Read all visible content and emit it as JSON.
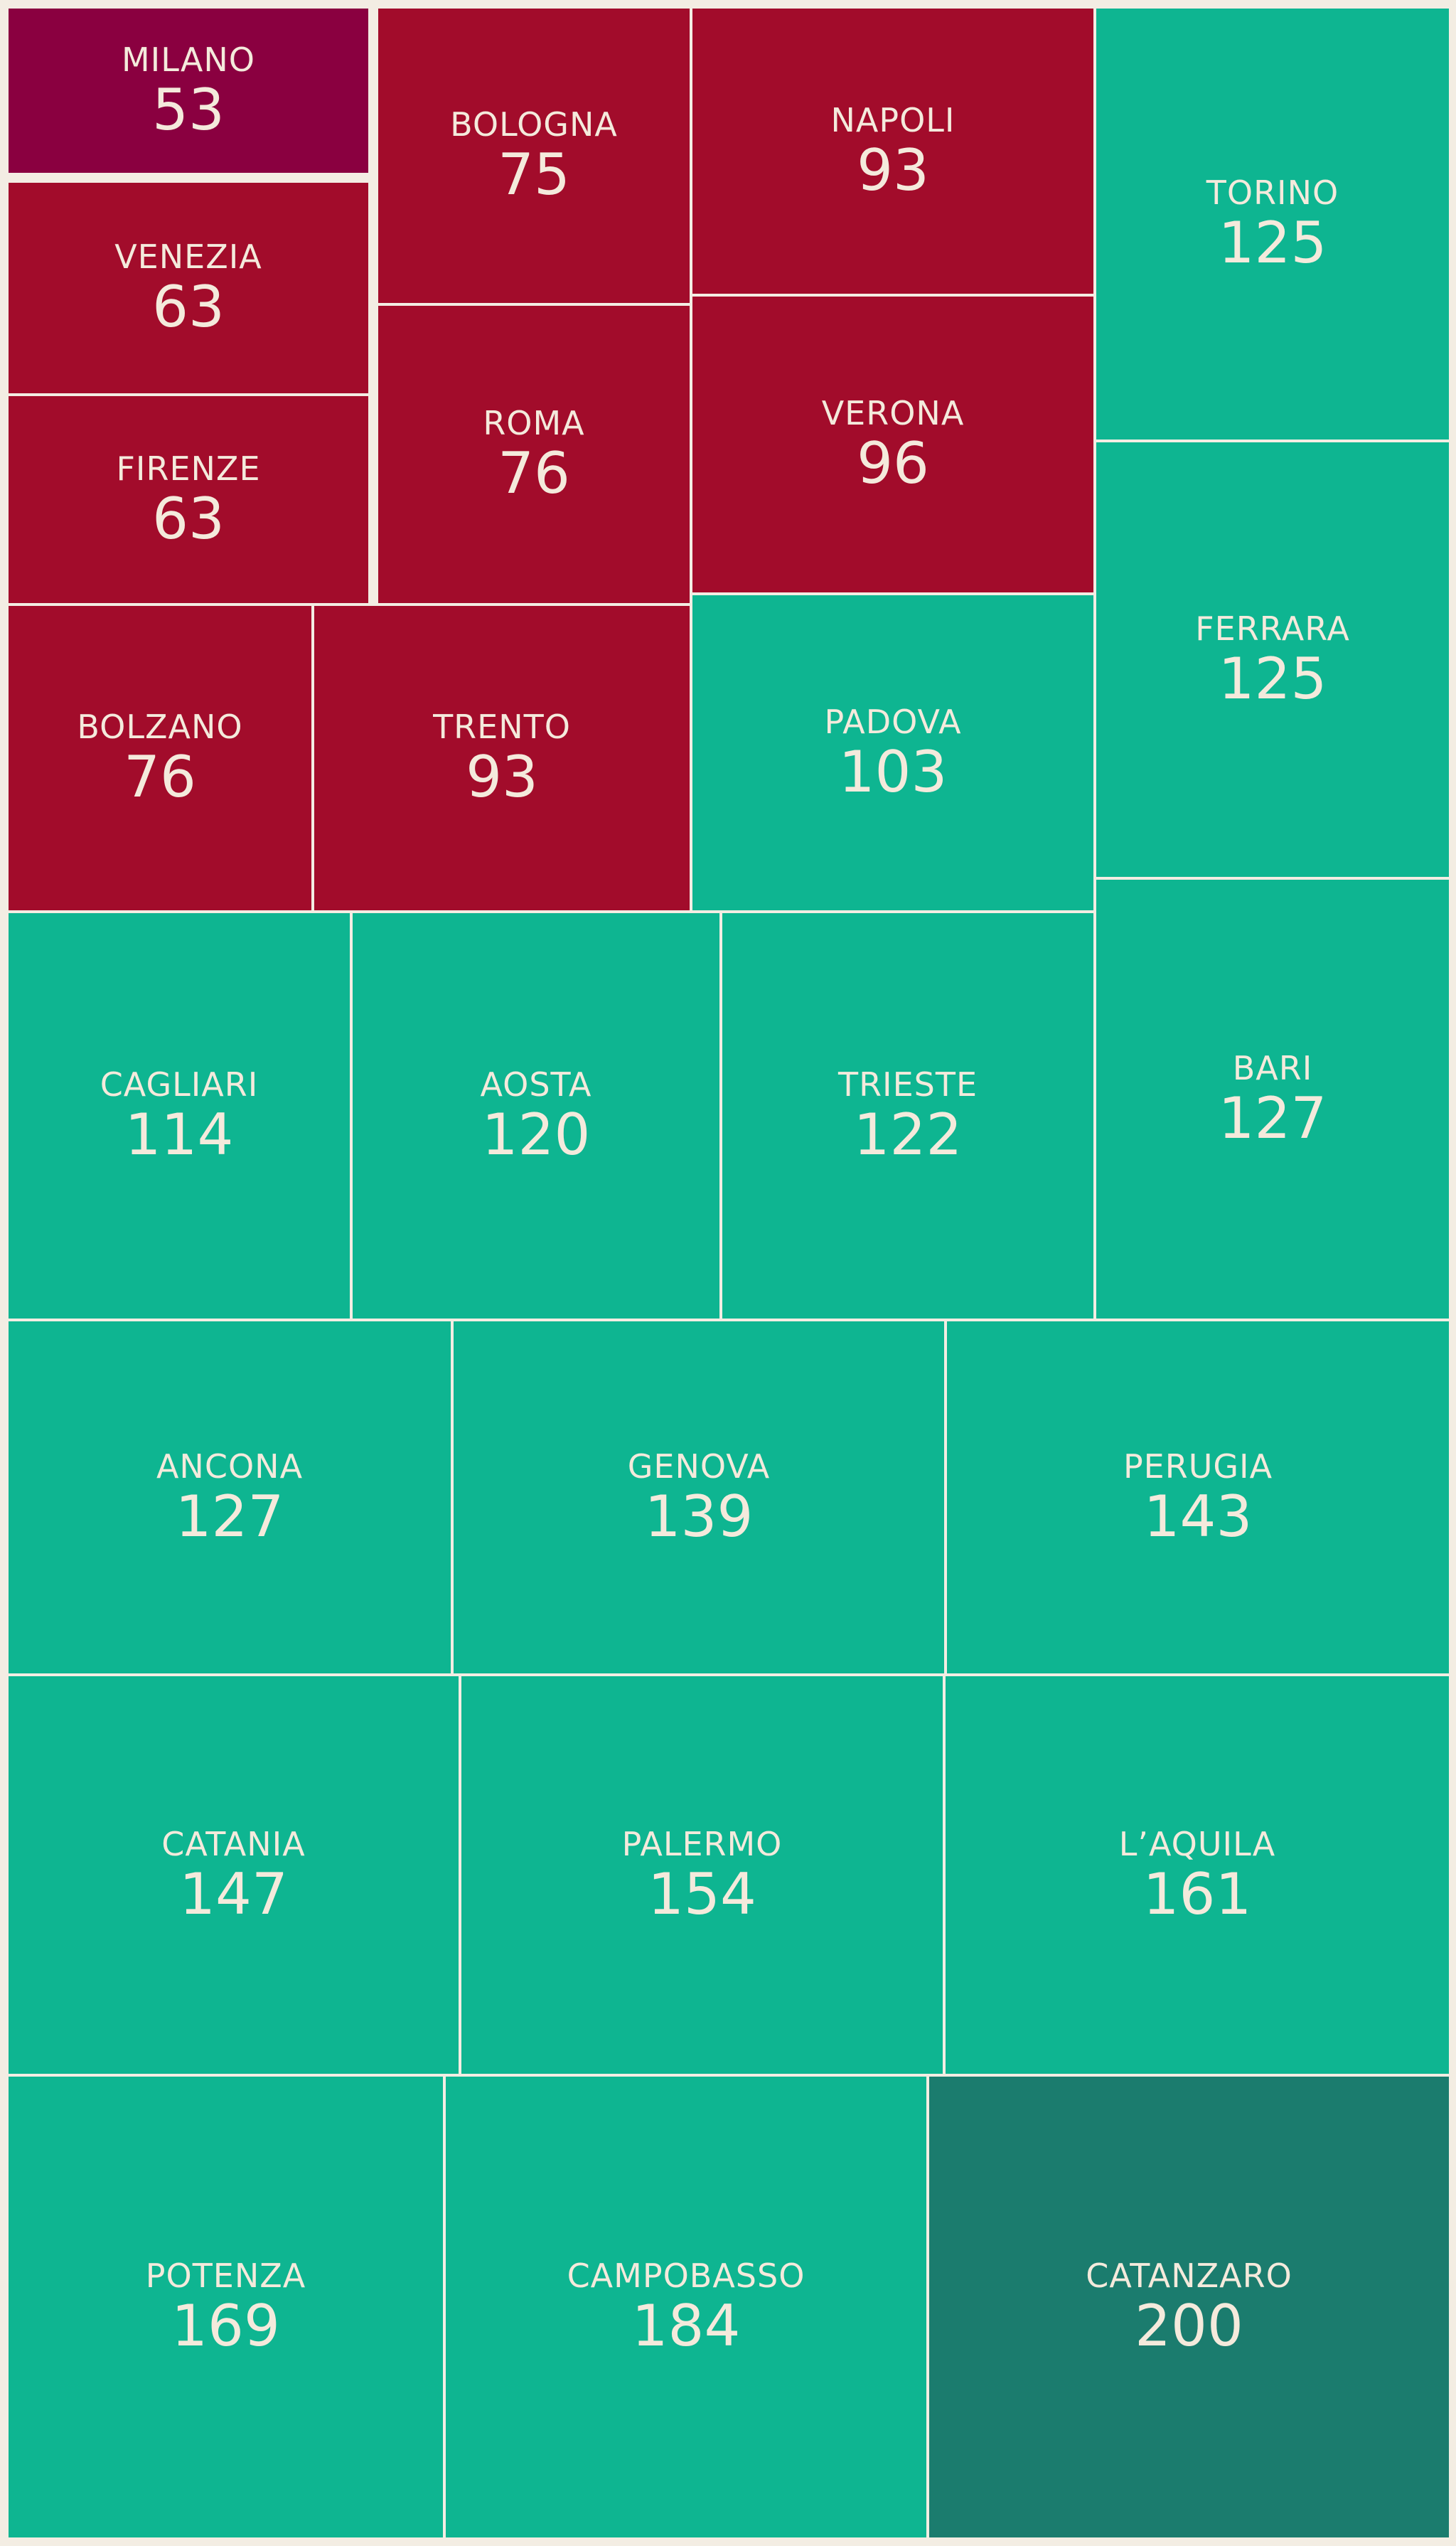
{
  "chart_data": {
    "type": "treemap",
    "title": "",
    "colors": {
      "red": "#a20c2b",
      "darkest_red": "#8a0040",
      "green": "#0eb591",
      "darkest_green": "#1b7c6e",
      "border": "#f3ede3",
      "text": "#f4eadc"
    },
    "items": [
      {
        "name": "MILANO",
        "value": 53,
        "color": "darkest_red"
      },
      {
        "name": "VENEZIA",
        "value": 63,
        "color": "red"
      },
      {
        "name": "FIRENZE",
        "value": 63,
        "color": "red"
      },
      {
        "name": "BOLOGNA",
        "value": 75,
        "color": "red"
      },
      {
        "name": "ROMA",
        "value": 76,
        "color": "red"
      },
      {
        "name": "BOLZANO",
        "value": 76,
        "color": "red"
      },
      {
        "name": "NAPOLI",
        "value": 93,
        "color": "red"
      },
      {
        "name": "TRENTO",
        "value": 93,
        "color": "red"
      },
      {
        "name": "VERONA",
        "value": 96,
        "color": "red"
      },
      {
        "name": "PADOVA",
        "value": 103,
        "color": "green"
      },
      {
        "name": "TORINO",
        "value": 125,
        "color": "green"
      },
      {
        "name": "FERRARA",
        "value": 125,
        "color": "green"
      },
      {
        "name": "CAGLIARI",
        "value": 114,
        "color": "green"
      },
      {
        "name": "AOSTA",
        "value": 120,
        "color": "green"
      },
      {
        "name": "TRIESTE",
        "value": 122,
        "color": "green"
      },
      {
        "name": "BARI",
        "value": 127,
        "color": "green"
      },
      {
        "name": "ANCONA",
        "value": 127,
        "color": "green"
      },
      {
        "name": "GENOVA",
        "value": 139,
        "color": "green"
      },
      {
        "name": "PERUGIA",
        "value": 143,
        "color": "green"
      },
      {
        "name": "CATANIA",
        "value": 147,
        "color": "green"
      },
      {
        "name": "PALERMO",
        "value": 154,
        "color": "green"
      },
      {
        "name": "L’AQUILA",
        "value": 161,
        "color": "green"
      },
      {
        "name": "POTENZA",
        "value": 169,
        "color": "green"
      },
      {
        "name": "CAMPOBASSO",
        "value": 184,
        "color": "green"
      },
      {
        "name": "CATANZARO",
        "value": 200,
        "color": "darkest_green"
      }
    ]
  }
}
